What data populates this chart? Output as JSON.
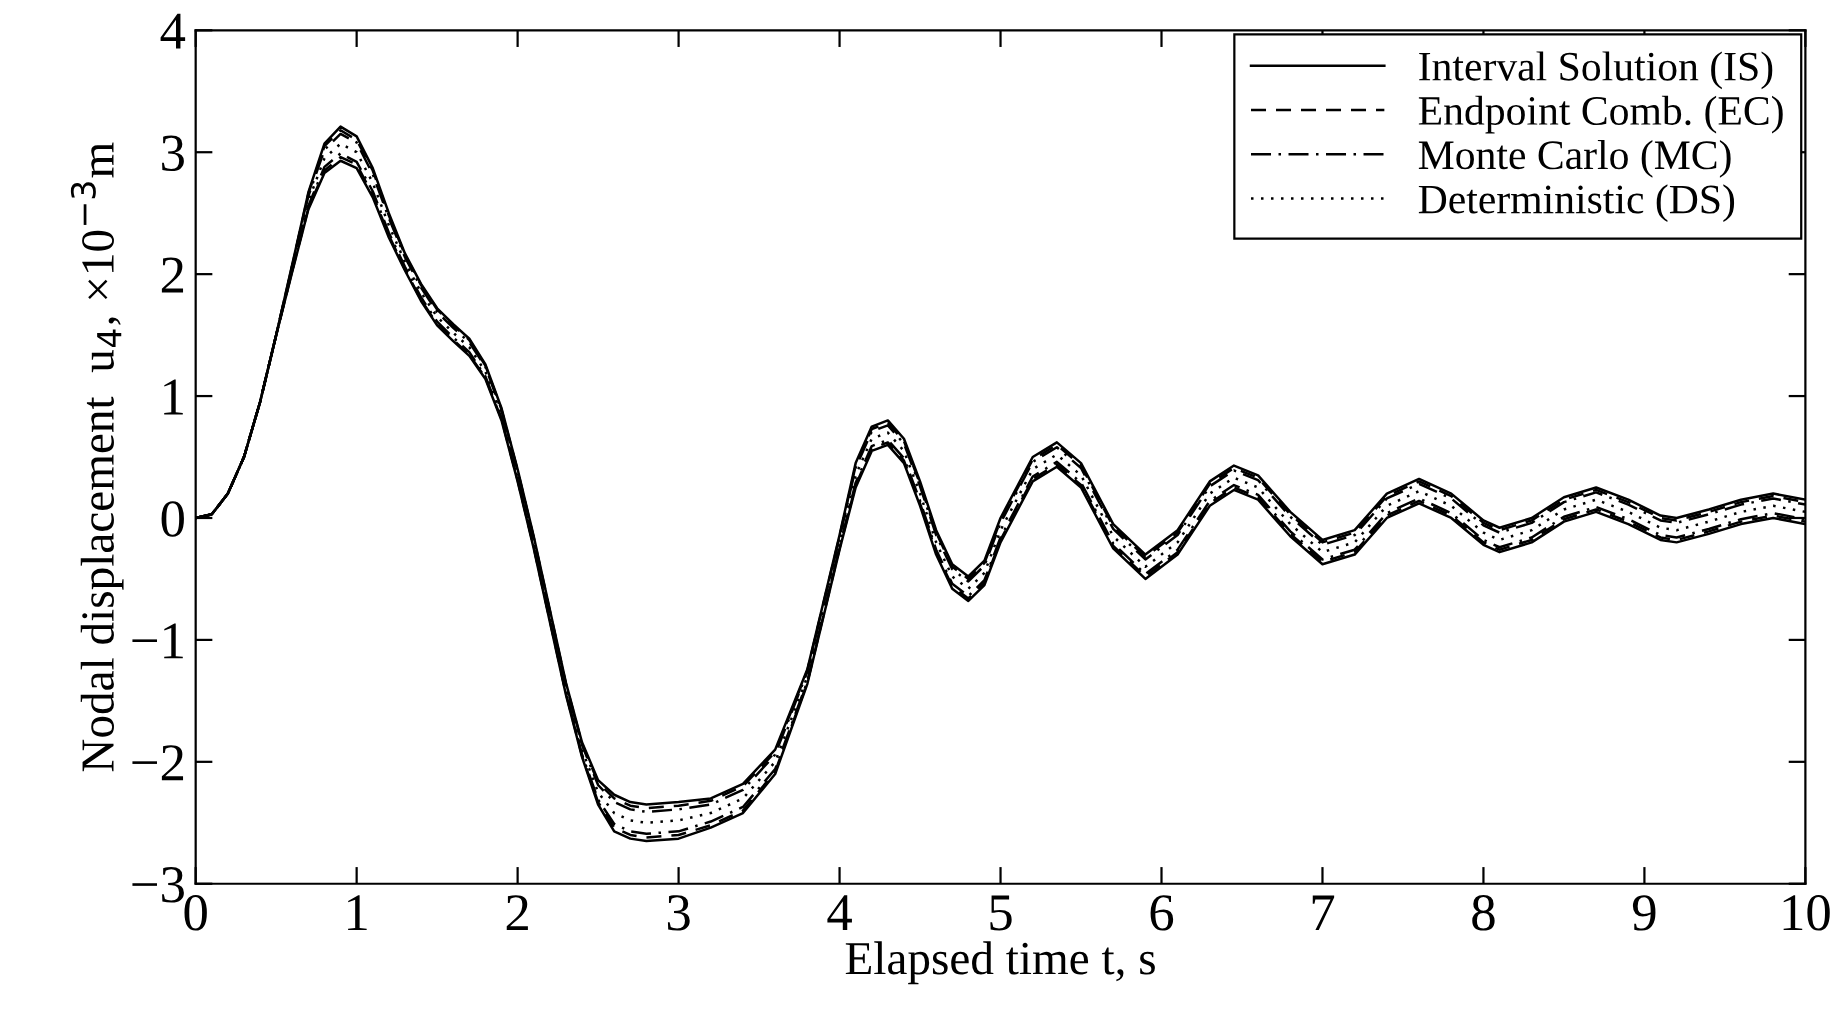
{
  "chart_data": {
    "type": "line",
    "xlabel": "Elapsed time t, s",
    "ylabel": "Nodal displacement  u$_{4}$, ×10$^{−3}$m",
    "x": [
      0,
      0.1,
      0.2,
      0.3,
      0.4,
      0.5,
      0.6,
      0.7,
      0.8,
      0.9,
      1.0,
      1.1,
      1.2,
      1.3,
      1.4,
      1.5,
      1.6,
      1.7,
      1.8,
      1.9,
      2.0,
      2.1,
      2.2,
      2.3,
      2.4,
      2.5,
      2.6,
      2.7,
      2.8,
      3.0,
      3.2,
      3.4,
      3.6,
      3.8,
      4.0,
      4.1,
      4.2,
      4.3,
      4.4,
      4.5,
      4.6,
      4.7,
      4.8,
      4.9,
      5.0,
      5.2,
      5.35,
      5.5,
      5.7,
      5.9,
      6.1,
      6.3,
      6.45,
      6.6,
      6.8,
      7.0,
      7.2,
      7.4,
      7.6,
      7.8,
      8.0,
      8.1,
      8.3,
      8.5,
      8.7,
      8.9,
      9.1,
      9.2,
      9.4,
      9.6,
      9.8,
      10
    ],
    "series": [
      {
        "name": "Interval Solution (IS)",
        "color": "#000000",
        "line_style": "solid",
        "values": [
          0,
          0.03,
          0.2,
          0.5,
          0.95,
          1.5,
          2.08,
          2.67,
          3.07,
          3.21,
          3.13,
          2.87,
          2.5,
          2.17,
          1.92,
          1.72,
          1.59,
          1.47,
          1.26,
          0.9,
          0.4,
          -0.15,
          -0.75,
          -1.35,
          -1.84,
          -2.15,
          -2.27,
          -2.33,
          -2.35,
          -2.33,
          -2.3,
          -2.18,
          -1.9,
          -1.24,
          -0.14,
          0.45,
          0.75,
          0.8,
          0.65,
          0.3,
          -0.1,
          -0.38,
          -0.48,
          -0.35,
          0,
          0.5,
          0.62,
          0.45,
          -0.05,
          -0.3,
          -0.1,
          0.3,
          0.43,
          0.35,
          0.05,
          -0.18,
          -0.1,
          0.2,
          0.32,
          0.2,
          -0.02,
          -0.08,
          0,
          0.17,
          0.25,
          0.15,
          0.02,
          0,
          0.07,
          0.15,
          0.2,
          0.15
        ]
      },
      {
        "color": "#000000",
        "line_style": "solid",
        "values": [
          0,
          0.03,
          0.2,
          0.5,
          0.95,
          1.5,
          2.02,
          2.53,
          2.83,
          2.93,
          2.87,
          2.63,
          2.3,
          2.03,
          1.78,
          1.58,
          1.45,
          1.33,
          1.14,
          0.8,
          0.3,
          -0.25,
          -0.85,
          -1.45,
          -1.96,
          -2.35,
          -2.57,
          -2.63,
          -2.65,
          -2.63,
          -2.54,
          -2.42,
          -2.1,
          -1.36,
          -0.26,
          0.25,
          0.55,
          0.6,
          0.45,
          0.1,
          -0.3,
          -0.58,
          -0.68,
          -0.55,
          -0.2,
          0.3,
          0.42,
          0.25,
          -0.25,
          -0.5,
          -0.3,
          0.1,
          0.23,
          0.15,
          -0.15,
          -0.38,
          -0.3,
          0,
          0.12,
          0,
          -0.22,
          -0.28,
          -0.2,
          -0.03,
          0.05,
          -0.05,
          -0.18,
          -0.2,
          -0.13,
          -0.05,
          0,
          -0.05
        ]
      },
      {
        "name": "Endpoint Comb. (EC)",
        "color": "#000000",
        "line_style": "dashed",
        "values": [
          0,
          0.03,
          0.2,
          0.5,
          0.95,
          1.5,
          2.07,
          2.66,
          3.05,
          3.18,
          3.1,
          2.85,
          2.48,
          2.16,
          1.91,
          1.71,
          1.58,
          1.46,
          1.25,
          0.89,
          0.39,
          -0.16,
          -0.76,
          -1.36,
          -1.85,
          -2.17,
          -2.3,
          -2.36,
          -2.38,
          -2.36,
          -2.32,
          -2.2,
          -1.92,
          -1.25,
          -0.15,
          0.43,
          0.73,
          0.78,
          0.63,
          0.28,
          -0.12,
          -0.4,
          -0.5,
          -0.37,
          -0.02,
          0.48,
          0.6,
          0.43,
          -0.07,
          -0.32,
          -0.12,
          0.28,
          0.41,
          0.33,
          0.03,
          -0.2,
          -0.12,
          0.18,
          0.3,
          0.18,
          -0.04,
          -0.1,
          -0.02,
          0.15,
          0.23,
          0.13,
          0,
          -0.02,
          0.05,
          0.13,
          0.18,
          0.13
        ]
      },
      {
        "color": "#000000",
        "line_style": "dashed",
        "values": [
          0,
          0.03,
          0.2,
          0.5,
          0.95,
          1.5,
          2.03,
          2.54,
          2.85,
          2.96,
          2.9,
          2.65,
          2.32,
          2.04,
          1.79,
          1.59,
          1.46,
          1.34,
          1.15,
          0.81,
          0.31,
          -0.24,
          -0.84,
          -1.44,
          -1.95,
          -2.33,
          -2.54,
          -2.6,
          -2.62,
          -2.6,
          -2.52,
          -2.4,
          -2.08,
          -1.35,
          -0.25,
          0.27,
          0.57,
          0.62,
          0.47,
          0.12,
          -0.28,
          -0.56,
          -0.66,
          -0.53,
          -0.18,
          0.32,
          0.44,
          0.27,
          -0.23,
          -0.48,
          -0.28,
          0.12,
          0.25,
          0.17,
          -0.13,
          -0.36,
          -0.28,
          0.02,
          0.14,
          0.02,
          -0.2,
          -0.26,
          -0.18,
          -0.01,
          0.07,
          -0.03,
          -0.16,
          -0.18,
          -0.11,
          -0.03,
          0.02,
          -0.03
        ]
      },
      {
        "name": "Monte Carlo (MC)",
        "color": "#000000",
        "line_style": "dashdot",
        "values": [
          0,
          0.03,
          0.2,
          0.5,
          0.95,
          1.5,
          2.07,
          2.64,
          3.02,
          3.15,
          3.08,
          2.82,
          2.46,
          2.14,
          1.89,
          1.69,
          1.56,
          1.44,
          1.24,
          0.88,
          0.38,
          -0.17,
          -0.77,
          -1.37,
          -1.86,
          -2.19,
          -2.33,
          -2.39,
          -2.41,
          -2.39,
          -2.35,
          -2.23,
          -1.94,
          -1.26,
          -0.16,
          0.41,
          0.71,
          0.76,
          0.61,
          0.26,
          -0.14,
          -0.42,
          -0.52,
          -0.39,
          -0.04,
          0.46,
          0.58,
          0.41,
          -0.09,
          -0.34,
          -0.14,
          0.26,
          0.39,
          0.31,
          0.01,
          -0.22,
          -0.14,
          0.16,
          0.28,
          0.16,
          -0.06,
          -0.12,
          -0.04,
          0.13,
          0.21,
          0.11,
          -0.02,
          -0.04,
          0.03,
          0.11,
          0.16,
          0.11
        ]
      },
      {
        "color": "#000000",
        "line_style": "dashdot",
        "values": [
          0,
          0.03,
          0.2,
          0.5,
          0.95,
          1.5,
          2.03,
          2.56,
          2.88,
          2.99,
          2.92,
          2.68,
          2.34,
          2.06,
          1.81,
          1.61,
          1.48,
          1.36,
          1.16,
          0.82,
          0.32,
          -0.23,
          -0.83,
          -1.43,
          -1.94,
          -2.31,
          -2.51,
          -2.57,
          -2.59,
          -2.57,
          -2.49,
          -2.37,
          -2.06,
          -1.34,
          -0.24,
          0.29,
          0.59,
          0.64,
          0.49,
          0.14,
          -0.26,
          -0.54,
          -0.64,
          -0.51,
          -0.16,
          0.34,
          0.46,
          0.29,
          -0.21,
          -0.46,
          -0.26,
          0.14,
          0.27,
          0.19,
          -0.11,
          -0.34,
          -0.26,
          0.04,
          0.16,
          0.04,
          -0.18,
          -0.24,
          -0.16,
          0.01,
          0.09,
          -0.01,
          -0.14,
          -0.16,
          -0.09,
          -0.01,
          0.04,
          -0.01
        ]
      },
      {
        "name": "Deterministic (DS)",
        "color": "#000000",
        "line_style": "dotted",
        "values": [
          0,
          0.03,
          0.2,
          0.5,
          0.95,
          1.5,
          2.05,
          2.6,
          2.95,
          3.07,
          3.0,
          2.75,
          2.4,
          2.1,
          1.85,
          1.65,
          1.52,
          1.4,
          1.2,
          0.85,
          0.35,
          -0.2,
          -0.8,
          -1.4,
          -1.9,
          -2.25,
          -2.42,
          -2.48,
          -2.5,
          -2.48,
          -2.42,
          -2.3,
          -2.0,
          -1.3,
          -0.2,
          0.35,
          0.65,
          0.7,
          0.55,
          0.2,
          -0.2,
          -0.48,
          -0.58,
          -0.45,
          -0.1,
          0.4,
          0.52,
          0.35,
          -0.15,
          -0.4,
          -0.2,
          0.2,
          0.33,
          0.25,
          -0.05,
          -0.28,
          -0.2,
          0.1,
          0.22,
          0.1,
          -0.12,
          -0.18,
          -0.1,
          0.07,
          0.15,
          0.05,
          -0.08,
          -0.1,
          -0.03,
          0.05,
          0.1,
          0.05
        ]
      }
    ],
    "xlim": [
      0,
      10
    ],
    "xticks": [
      0,
      1,
      2,
      3,
      4,
      5,
      6,
      7,
      8,
      9,
      10
    ],
    "ylim": [
      -3,
      4
    ],
    "yticks": [
      -3,
      -2,
      -1,
      0,
      1,
      2,
      3,
      4
    ],
    "grid": false,
    "legend": "top right"
  }
}
